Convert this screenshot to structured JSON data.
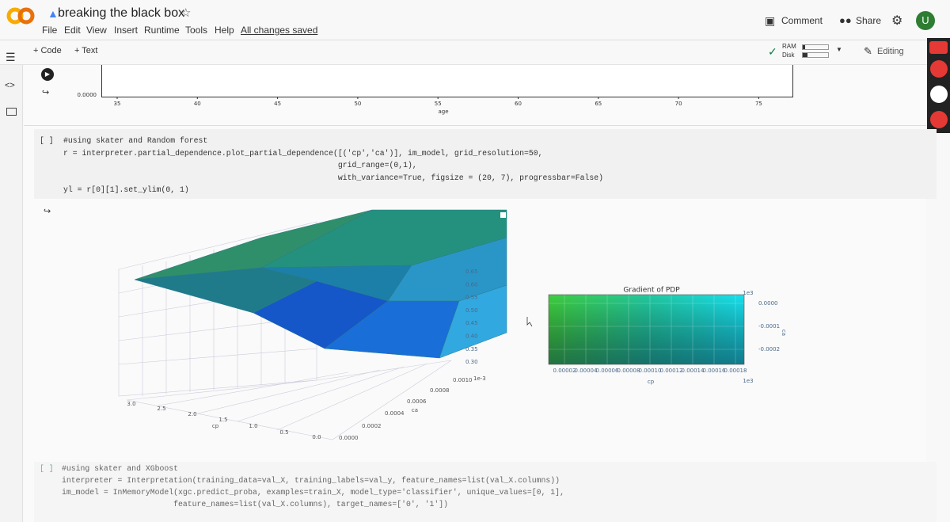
{
  "header": {
    "title": "breaking the black box",
    "menu": [
      "File",
      "Edit",
      "View",
      "Insert",
      "Runtime",
      "Tools",
      "Help"
    ],
    "save_status": "All changes saved",
    "comment": "Comment",
    "share": "Share",
    "avatar": "U"
  },
  "toolbar": {
    "add_code": "+ Code",
    "add_text": "+ Text",
    "ram": "RAM",
    "disk": "Disk",
    "editing": "Editing"
  },
  "age_plot": {
    "y_tick": "0.0000",
    "x_ticks": [
      "35",
      "40",
      "45",
      "50",
      "55",
      "60",
      "65",
      "70",
      "75"
    ],
    "x_label": "age"
  },
  "cell1": {
    "bracket": "[ ]",
    "lines": [
      "#using skater and Random forest",
      "r = interpreter.partial_dependence.plot_partial_dependence([('cp','ca')], im_model, grid_resolution=50,",
      "                                                           grid_range=(0,1),",
      "                                                           with_variance=True, figsize = (20, 7), progressbar=False)",
      "yl = r[0][1].set_ylim(0, 1)"
    ]
  },
  "surface_plot": {
    "z_ticks": [
      "0.65",
      "0.60",
      "0.55",
      "0.50",
      "0.45",
      "0.40",
      "0.35",
      "0.30"
    ],
    "ca_ticks": [
      "0.0010",
      "0.0008",
      "0.0006",
      "0.0004",
      "0.0002",
      "0.0000"
    ],
    "ca_exponent": "1e-3",
    "ca_label": "ca",
    "cp_ticks": [
      "3.0",
      "2.5",
      "2.0",
      "1.5",
      "1.0",
      "0.5",
      "0.0"
    ],
    "cp_label": "cp"
  },
  "gradient_plot": {
    "title": "Gradient of PDP",
    "x_ticks": [
      "0.00002",
      "0.00004",
      "0.00006",
      "0.00008",
      "0.00010",
      "0.00012",
      "0.00014",
      "0.00016",
      "0.00018"
    ],
    "x_exponent": "1e3",
    "x_label": "cp",
    "y_ticks": [
      "0.0000",
      "-0.0001",
      "-0.0002"
    ],
    "y_exponent": "1e3",
    "y_label": "ca"
  },
  "cell2": {
    "bracket": "[ ]",
    "lines": [
      "#using skater and XGboost",
      "interpreter = Interpretation(training_data=val_X, training_labels=val_y, feature_names=list(val_X.columns))",
      "im_model = InMemoryModel(xgc.predict_proba, examples=train_X, model_type='classifier', unique_values=[0, 1],",
      "                        feature_names=list(val_X.columns), target_names=['0', '1'])"
    ]
  }
}
